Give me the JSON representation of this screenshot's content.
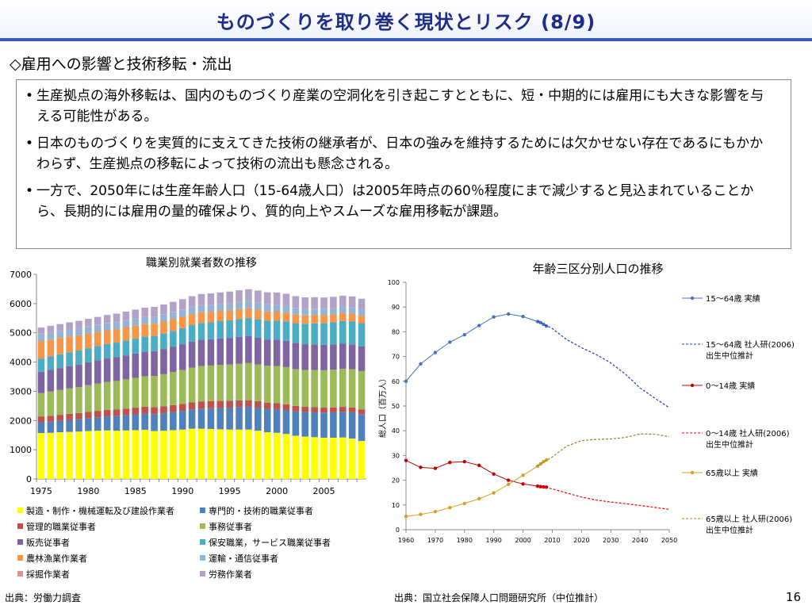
{
  "header": {
    "title": "ものづくりを取り巻く現状とリスク (8/9)"
  },
  "section_title": "◇雇用への影響と技術移転・流出",
  "bullets": [
    "生産拠点の海外移転は、国内のものづくり産業の空洞化を引き起こすとともに、短・中期的には雇用にも大きな影響を与える可能性がある。",
    "日本のものづくりを実質的に支えてきた技術の継承者が、日本の強みを維持するためには欠かせない存在であるにもかかわらず、生産拠点の移転によって技術の流出も懸念される。",
    "一方で、2050年には生産年齢人口（15-64歳人口）は2005年時点の60％程度にまで減少すると見込まれていることから、長期的には雇用の量的確保より、質的向上やスムーズな雇用移転が課題。"
  ],
  "footer": {
    "source_left": "出典：労働力調査",
    "source_right": "出典：国立社会保障人口問題研究所（中位推計）",
    "page_number": "16"
  },
  "chart_data": [
    {
      "type": "bar",
      "stacked": true,
      "title": "職業別就業者数の推移",
      "xlabel": "",
      "ylabel": "",
      "ylim": [
        0,
        7000
      ],
      "yticks": [
        0,
        1000,
        2000,
        3000,
        4000,
        5000,
        6000,
        7000
      ],
      "x_tick_labels": [
        "1975",
        "1980",
        "1985",
        "1990",
        "1995",
        "2000",
        "2005"
      ],
      "categories": [
        1975,
        1976,
        1977,
        1978,
        1979,
        1980,
        1981,
        1982,
        1983,
        1984,
        1985,
        1986,
        1987,
        1988,
        1989,
        1990,
        1991,
        1992,
        1993,
        1994,
        1995,
        1996,
        1997,
        1998,
        1999,
        2000,
        2001,
        2002,
        2003,
        2004,
        2005,
        2006,
        2007,
        2008,
        2009
      ],
      "series": [
        {
          "name": "製造・制作・機械運転及び建設作業者",
          "color": "#ffff00",
          "values": [
            1570,
            1580,
            1600,
            1610,
            1620,
            1640,
            1650,
            1660,
            1650,
            1660,
            1670,
            1680,
            1640,
            1650,
            1670,
            1690,
            1720,
            1720,
            1710,
            1700,
            1690,
            1690,
            1690,
            1650,
            1600,
            1580,
            1540,
            1480,
            1450,
            1430,
            1410,
            1410,
            1420,
            1380,
            1300
          ]
        },
        {
          "name": "専門的・技術的職業従事者",
          "color": "#4f81bd",
          "values": [
            370,
            380,
            390,
            410,
            420,
            440,
            460,
            480,
            500,
            520,
            540,
            560,
            580,
            600,
            620,
            640,
            660,
            690,
            710,
            730,
            750,
            770,
            780,
            790,
            800,
            810,
            820,
            830,
            840,
            850,
            860,
            870,
            880,
            900,
            920
          ]
        },
        {
          "name": "管理的職業従事者",
          "color": "#c0504d",
          "values": [
            200,
            200,
            205,
            210,
            215,
            220,
            220,
            222,
            225,
            228,
            230,
            232,
            234,
            236,
            238,
            240,
            242,
            244,
            242,
            240,
            236,
            230,
            225,
            220,
            212,
            205,
            198,
            190,
            180,
            175,
            170,
            168,
            166,
            165,
            162
          ]
        },
        {
          "name": "事務従事者",
          "color": "#9bbb59",
          "values": [
            800,
            830,
            850,
            870,
            890,
            910,
            940,
            960,
            980,
            1000,
            1020,
            1040,
            1070,
            1100,
            1130,
            1160,
            1190,
            1210,
            1220,
            1230,
            1240,
            1250,
            1270,
            1260,
            1260,
            1270,
            1270,
            1260,
            1260,
            1270,
            1280,
            1290,
            1300,
            1310,
            1310
          ]
        },
        {
          "name": "販売従事者",
          "color": "#8064a2",
          "values": [
            730,
            740,
            750,
            760,
            770,
            780,
            790,
            800,
            810,
            820,
            830,
            840,
            850,
            860,
            870,
            880,
            890,
            900,
            900,
            910,
            910,
            920,
            920,
            910,
            900,
            900,
            900,
            890,
            880,
            880,
            870,
            860,
            860,
            850,
            840
          ]
        },
        {
          "name": "保安職業，サービス職業従事者",
          "color": "#4bacc6",
          "values": [
            450,
            460,
            470,
            475,
            480,
            485,
            490,
            495,
            500,
            505,
            510,
            515,
            520,
            530,
            540,
            550,
            560,
            570,
            580,
            590,
            600,
            610,
            620,
            630,
            640,
            650,
            660,
            680,
            700,
            720,
            740,
            760,
            780,
            790,
            800
          ]
        },
        {
          "name": "農林漁業作業者",
          "color": "#f79646",
          "values": [
            600,
            580,
            560,
            540,
            520,
            500,
            480,
            470,
            460,
            450,
            440,
            430,
            420,
            410,
            400,
            390,
            380,
            370,
            360,
            350,
            345,
            340,
            335,
            330,
            320,
            310,
            300,
            290,
            285,
            280,
            275,
            270,
            265,
            260,
            255
          ]
        },
        {
          "name": "運輸・通信従事者",
          "color": "#95b3d7",
          "values": [
            240,
            240,
            240,
            240,
            240,
            240,
            240,
            240,
            240,
            240,
            240,
            240,
            240,
            240,
            240,
            240,
            240,
            240,
            240,
            240,
            240,
            240,
            240,
            240,
            240,
            240,
            240,
            230,
            220,
            220,
            215,
            215,
            215,
            210,
            205
          ]
        },
        {
          "name": "採掘作業者",
          "color": "#d99694",
          "values": [
            10,
            10,
            10,
            10,
            10,
            10,
            10,
            9,
            9,
            9,
            9,
            8,
            8,
            8,
            8,
            8,
            7,
            7,
            7,
            7,
            6,
            6,
            6,
            6,
            5,
            5,
            5,
            5,
            5,
            4,
            4,
            4,
            4,
            4,
            4
          ]
        },
        {
          "name": "労務作業者",
          "color": "#b2a2c7",
          "values": [
            210,
            220,
            225,
            235,
            245,
            255,
            265,
            275,
            285,
            295,
            305,
            315,
            325,
            335,
            345,
            355,
            365,
            375,
            380,
            385,
            395,
            400,
            405,
            410,
            410,
            410,
            405,
            400,
            395,
            390,
            385,
            385,
            380,
            375,
            370
          ]
        }
      ],
      "legend": "bottom",
      "grid": false
    },
    {
      "type": "line",
      "title": "年齢三区分別人口の推移",
      "ylabel": "総人口（百万人）",
      "xlim": [
        1960,
        2050
      ],
      "ylim": [
        0,
        100
      ],
      "xticks": [
        1960,
        1970,
        1980,
        1990,
        2000,
        2010,
        2020,
        2030,
        2040,
        2050
      ],
      "yticks": [
        0,
        10,
        20,
        30,
        40,
        50,
        60,
        70,
        80,
        90,
        100
      ],
      "legend": "right",
      "grid": false,
      "series": [
        {
          "name": "15～64歳 実績",
          "color": "#4472c4",
          "style": "solid-marker",
          "x": [
            1960,
            1965,
            1970,
            1975,
            1980,
            1985,
            1990,
            1995,
            2000,
            2005,
            2006,
            2007,
            2008
          ],
          "y": [
            60,
            67,
            71.6,
            75.8,
            78.8,
            82.5,
            86,
            87.2,
            86.2,
            84.1,
            83.7,
            83.0,
            82.3
          ]
        },
        {
          "name": "15～64歳 社人研(2006)\n出生中位推計",
          "color": "#1f3fbf",
          "style": "dashed",
          "x": [
            2005,
            2010,
            2015,
            2020,
            2025,
            2030,
            2035,
            2040,
            2045,
            2050
          ],
          "y": [
            84.4,
            81.3,
            76.8,
            73.6,
            70.8,
            67.4,
            62.9,
            57.3,
            53.2,
            49.3
          ]
        },
        {
          "name": "0～14歳 実績",
          "color": "#c00000",
          "style": "solid-marker",
          "x": [
            1960,
            1965,
            1970,
            1975,
            1980,
            1985,
            1990,
            1995,
            2000,
            2005,
            2006,
            2007,
            2008
          ],
          "y": [
            28,
            25.2,
            24.8,
            27.2,
            27.5,
            26,
            22.5,
            20,
            18.5,
            17.6,
            17.4,
            17.3,
            17.2
          ]
        },
        {
          "name": "0～14歳 社人研(2006)\n出生中位推計",
          "color": "#ff0000",
          "style": "dashed",
          "x": [
            2005,
            2010,
            2015,
            2020,
            2025,
            2030,
            2035,
            2040,
            2045,
            2050
          ],
          "y": [
            17.6,
            16.5,
            14.8,
            13.2,
            12.0,
            11.2,
            10.5,
            9.8,
            9.0,
            8.2
          ]
        },
        {
          "name": "65歳以上 実績",
          "color": "#d4a028",
          "style": "solid-marker",
          "x": [
            1960,
            1965,
            1970,
            1975,
            1980,
            1985,
            1990,
            1995,
            2000,
            2005,
            2006,
            2007,
            2008
          ],
          "y": [
            5.4,
            6.2,
            7.3,
            8.9,
            10.6,
            12.5,
            14.9,
            18.3,
            22,
            25.7,
            26.6,
            27.5,
            28.2
          ]
        },
        {
          "name": "65歳以上 社人研(2006)\n出生中位推計",
          "color": "#a08020",
          "style": "dashed",
          "x": [
            2005,
            2010,
            2015,
            2020,
            2025,
            2030,
            2035,
            2040,
            2045,
            2050
          ],
          "y": [
            25.8,
            29.4,
            33.8,
            36.0,
            36.5,
            36.7,
            37.3,
            38.7,
            38.6,
            37.6
          ]
        }
      ]
    }
  ]
}
